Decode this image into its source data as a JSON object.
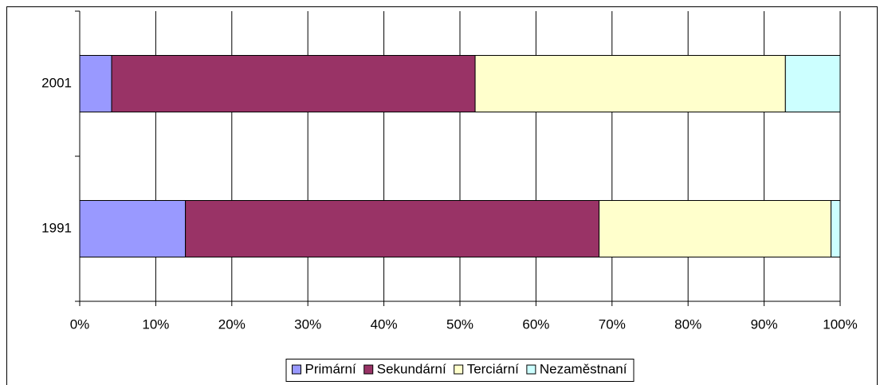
{
  "chart_data": {
    "type": "stacked-barh",
    "categories": [
      "1991",
      "2001"
    ],
    "series": [
      {
        "name": "Primární",
        "color": "#9999ff",
        "values": [
          13.9,
          4.2
        ]
      },
      {
        "name": "Sekundární",
        "color": "#993366",
        "values": [
          54.4,
          47.8
        ]
      },
      {
        "name": "Terciární",
        "color": "#ffffcc",
        "values": [
          30.5,
          40.8
        ]
      },
      {
        "name": "Nezaměstnaní",
        "color": "#ccffff",
        "values": [
          1.2,
          7.2
        ]
      }
    ],
    "xlim": [
      0,
      100
    ],
    "xticks": [
      {
        "value": 0,
        "label": "0%"
      },
      {
        "value": 10,
        "label": "10%"
      },
      {
        "value": 20,
        "label": "20%"
      },
      {
        "value": 30,
        "label": "30%"
      },
      {
        "value": 40,
        "label": "40%"
      },
      {
        "value": 50,
        "label": "50%"
      },
      {
        "value": 60,
        "label": "60%"
      },
      {
        "value": 70,
        "label": "70%"
      },
      {
        "value": 80,
        "label": "80%"
      },
      {
        "value": 90,
        "label": "90%"
      },
      {
        "value": 100,
        "label": "100%"
      }
    ],
    "grid": true,
    "legend": "bottom"
  }
}
